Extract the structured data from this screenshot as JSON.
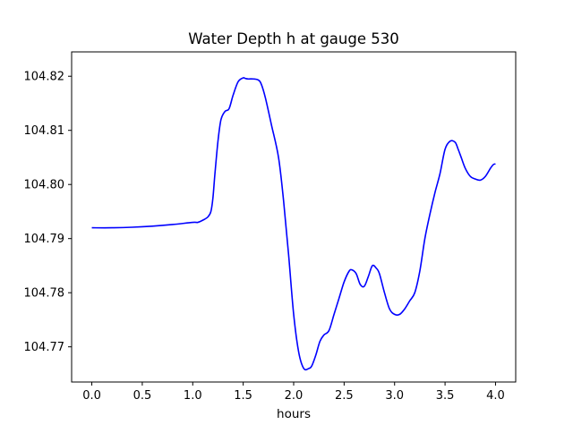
{
  "chart_data": {
    "type": "line",
    "title": "Water Depth h at gauge 530",
    "xlabel": "hours",
    "ylabel": "",
    "xlim": [
      -0.2,
      4.2
    ],
    "ylim": [
      104.7635,
      104.8245
    ],
    "x_ticks": [
      0.0,
      0.5,
      1.0,
      1.5,
      2.0,
      2.5,
      3.0,
      3.5,
      4.0
    ],
    "x_tick_labels": [
      "0.0",
      "0.5",
      "1.0",
      "1.5",
      "2.0",
      "2.5",
      "3.0",
      "3.5",
      "4.0"
    ],
    "y_ticks": [
      104.77,
      104.78,
      104.79,
      104.8,
      104.81,
      104.82
    ],
    "y_tick_labels": [
      "104.77",
      "104.78",
      "104.79",
      "104.80",
      "104.81",
      "104.82"
    ],
    "grid": false,
    "series": [
      {
        "color": "#0000ff",
        "x": [
          0.0,
          0.2,
          0.4,
          0.6,
          0.8,
          1.0,
          1.05,
          1.1,
          1.15,
          1.18,
          1.2,
          1.22,
          1.25,
          1.28,
          1.32,
          1.36,
          1.4,
          1.45,
          1.5,
          1.52,
          1.55,
          1.6,
          1.65,
          1.68,
          1.72,
          1.78,
          1.85,
          1.9,
          1.95,
          2.0,
          2.05,
          2.1,
          2.15,
          2.18,
          2.22,
          2.26,
          2.3,
          2.35,
          2.4,
          2.45,
          2.5,
          2.55,
          2.58,
          2.62,
          2.66,
          2.7,
          2.74,
          2.78,
          2.82,
          2.85,
          2.9,
          2.95,
          3.0,
          3.05,
          3.1,
          3.15,
          3.2,
          3.25,
          3.3,
          3.35,
          3.4,
          3.45,
          3.5,
          3.55,
          3.6,
          3.63,
          3.66,
          3.7,
          3.75,
          3.8,
          3.85,
          3.9,
          3.95,
          3.98,
          4.0
        ],
        "y": [
          104.792,
          104.792,
          104.7921,
          104.7923,
          104.7926,
          104.793,
          104.793,
          104.7934,
          104.794,
          104.795,
          104.7975,
          104.802,
          104.808,
          104.812,
          104.8135,
          104.814,
          104.8165,
          104.819,
          104.8197,
          104.8196,
          104.8195,
          104.8195,
          104.8193,
          104.8185,
          104.816,
          104.811,
          104.805,
          104.797,
          104.787,
          104.776,
          104.769,
          104.766,
          104.766,
          104.7665,
          104.7685,
          104.771,
          104.7722,
          104.773,
          104.776,
          104.779,
          104.782,
          104.784,
          104.7842,
          104.7835,
          104.7815,
          104.7812,
          104.783,
          104.785,
          104.7845,
          104.7835,
          104.78,
          104.777,
          104.776,
          104.776,
          104.777,
          104.7785,
          104.78,
          104.784,
          104.79,
          104.7945,
          104.7985,
          104.802,
          104.8065,
          104.808,
          104.8078,
          104.8065,
          104.805,
          104.803,
          104.8015,
          104.801,
          104.8008,
          104.8015,
          104.803,
          104.8037,
          104.8038
        ]
      }
    ]
  }
}
